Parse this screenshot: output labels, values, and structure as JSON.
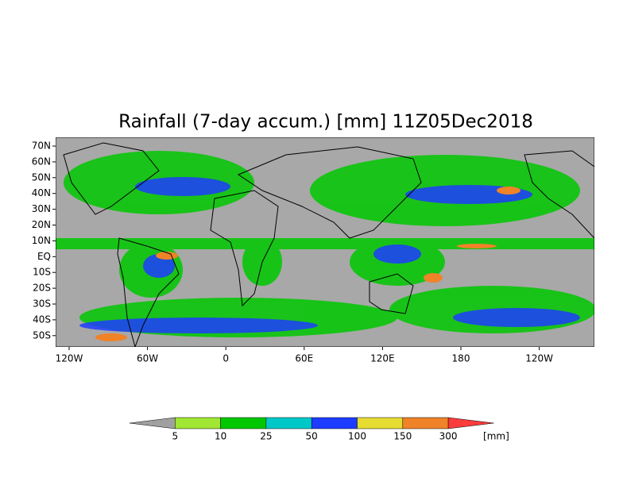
{
  "title": "Rainfall (7-day accum.) [mm] 11Z05Dec2018",
  "map": {
    "lat_labels": [
      "70N",
      "60N",
      "50N",
      "40N",
      "30N",
      "20N",
      "10N",
      "EQ",
      "10S",
      "20S",
      "30S",
      "40S",
      "50S"
    ],
    "lon_labels": [
      "120W",
      "60W",
      "0",
      "60E",
      "120E",
      "180",
      "120W"
    ]
  },
  "legend": {
    "levels": [
      "5",
      "10",
      "25",
      "50",
      "100",
      "150",
      "300"
    ],
    "unit": "[mm]",
    "colors": [
      "#a0a0a0",
      "#a0e632",
      "#00c800",
      "#00c8c8",
      "#1e3cff",
      "#e6dc32",
      "#f08228",
      "#fa3c3c"
    ]
  }
}
